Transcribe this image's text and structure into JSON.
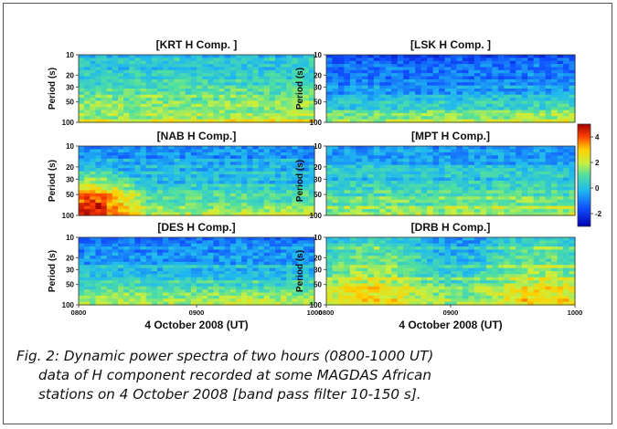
{
  "figure": {
    "panels": [
      {
        "title": "[KRT  H  Comp. ]",
        "seed": 11,
        "profile": "krt"
      },
      {
        "title": "[LSK  H  Comp. ]",
        "seed": 23,
        "profile": "lsk"
      },
      {
        "title": "[NAB  H  Comp.]",
        "seed": 37,
        "profile": "nab"
      },
      {
        "title": "[MPT  H  Comp.]",
        "seed": 41,
        "profile": "mpt"
      },
      {
        "title": "[DES  H  Comp.]",
        "seed": 53,
        "profile": "des"
      },
      {
        "title": "[DRB  H  Comp.]",
        "seed": 67,
        "profile": "drb"
      }
    ],
    "ylabel": "Period (s)",
    "yticks": [
      "10",
      "20",
      "30",
      "50",
      "100"
    ],
    "xticks": [
      "0800",
      "0900",
      "1000"
    ],
    "xlabel": "4 October 2008  (UT)",
    "colorbar": {
      "ticks": [
        "4",
        "2",
        "0",
        "-2"
      ],
      "range": [
        -3,
        5
      ]
    }
  },
  "chart_data": {
    "type": "heatmap",
    "title": "",
    "panels": [
      "KRT H Comp.",
      "LSK H Comp.",
      "NAB H Comp.",
      "MPT H Comp.",
      "DES H Comp.",
      "DRB H Comp."
    ],
    "x": {
      "label": "4 October 2008 (UT)",
      "ticks": [
        "0800",
        "0900",
        "1000"
      ],
      "range": [
        "0800",
        "1000"
      ]
    },
    "y": {
      "label": "Period (s)",
      "ticks": [
        10,
        20,
        30,
        50,
        100
      ],
      "range": [
        10,
        100
      ]
    },
    "colorbar": {
      "ticks": [
        4,
        2,
        0,
        -2
      ],
      "range": [
        -3,
        5
      ]
    }
  },
  "caption": {
    "line1": "Fig. 2: Dynamic power spectra of two hours (0800-1000 UT)",
    "line2": "data of H component recorded at some MAGDAS African",
    "line3": "stations on 4 October 2008 [band pass filter 10-150 s]."
  }
}
